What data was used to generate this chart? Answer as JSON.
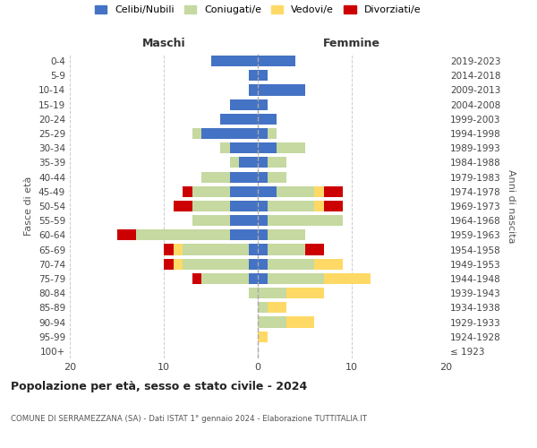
{
  "age_groups": [
    "100+",
    "95-99",
    "90-94",
    "85-89",
    "80-84",
    "75-79",
    "70-74",
    "65-69",
    "60-64",
    "55-59",
    "50-54",
    "45-49",
    "40-44",
    "35-39",
    "30-34",
    "25-29",
    "20-24",
    "15-19",
    "10-14",
    "5-9",
    "0-4"
  ],
  "birth_years": [
    "≤ 1923",
    "1924-1928",
    "1929-1933",
    "1934-1938",
    "1939-1943",
    "1944-1948",
    "1949-1953",
    "1954-1958",
    "1959-1963",
    "1964-1968",
    "1969-1973",
    "1974-1978",
    "1979-1983",
    "1984-1988",
    "1989-1993",
    "1994-1998",
    "1999-2003",
    "2004-2008",
    "2009-2013",
    "2014-2018",
    "2019-2023"
  ],
  "colors": {
    "celibe": "#4472C4",
    "coniugato": "#C5D9A0",
    "vedovo": "#FFD966",
    "divorziato": "#CC0000"
  },
  "males": {
    "celibe": [
      0,
      0,
      0,
      0,
      0,
      1,
      1,
      1,
      3,
      3,
      3,
      3,
      3,
      2,
      3,
      6,
      4,
      3,
      1,
      1,
      5
    ],
    "coniugato": [
      0,
      0,
      0,
      0,
      1,
      5,
      7,
      7,
      10,
      4,
      4,
      4,
      3,
      1,
      1,
      1,
      0,
      0,
      0,
      0,
      0
    ],
    "vedovo": [
      0,
      0,
      0,
      0,
      0,
      0,
      1,
      1,
      0,
      0,
      0,
      0,
      0,
      0,
      0,
      0,
      0,
      0,
      0,
      0,
      0
    ],
    "divorziato": [
      0,
      0,
      0,
      0,
      0,
      1,
      1,
      1,
      2,
      0,
      2,
      1,
      0,
      0,
      0,
      0,
      0,
      0,
      0,
      0,
      0
    ]
  },
  "females": {
    "celibe": [
      0,
      0,
      0,
      0,
      0,
      1,
      1,
      1,
      1,
      1,
      1,
      2,
      1,
      1,
      2,
      1,
      2,
      1,
      5,
      1,
      4
    ],
    "coniugato": [
      0,
      0,
      3,
      1,
      3,
      6,
      5,
      4,
      4,
      8,
      5,
      4,
      2,
      2,
      3,
      1,
      0,
      0,
      0,
      0,
      0
    ],
    "vedovo": [
      0,
      1,
      3,
      2,
      4,
      5,
      3,
      0,
      0,
      0,
      1,
      1,
      0,
      0,
      0,
      0,
      0,
      0,
      0,
      0,
      0
    ],
    "divorziato": [
      0,
      0,
      0,
      0,
      0,
      0,
      0,
      2,
      0,
      0,
      2,
      2,
      0,
      0,
      0,
      0,
      0,
      0,
      0,
      0,
      0
    ]
  },
  "title": "Popolazione per età, sesso e stato civile - 2024",
  "subtitle": "COMUNE DI SERRAMEZZANA (SA) - Dati ISTAT 1° gennaio 2024 - Elaborazione TUTTITALIA.IT",
  "xlabel_left": "Maschi",
  "xlabel_right": "Femmine",
  "ylabel_left": "Fasce di età",
  "ylabel_right": "Anni di nascita",
  "legend_labels": [
    "Celibi/Nubili",
    "Coniugati/e",
    "Vedovi/e",
    "Divorziati/e"
  ],
  "xlim": 20,
  "background_color": "#ffffff",
  "grid_color": "#cccccc"
}
